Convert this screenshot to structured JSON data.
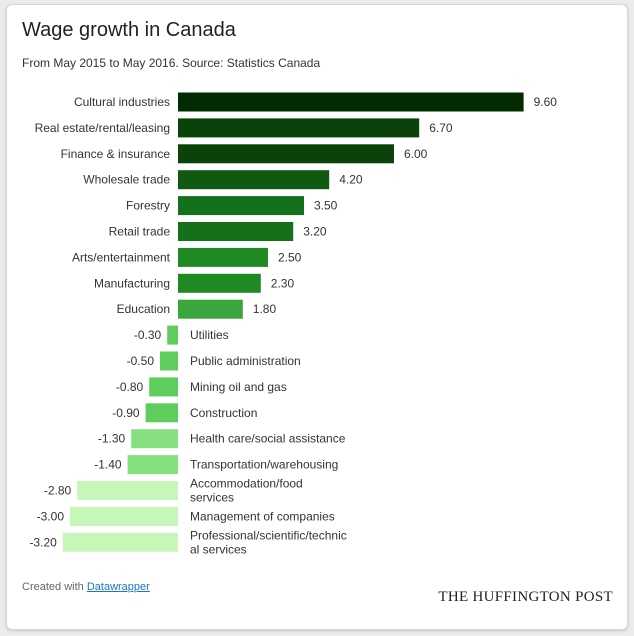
{
  "header": {
    "title": "Wage growth in Canada",
    "subtitle": "From May 2015 to May 2016. Source: Statistics Canada"
  },
  "footer": {
    "created_prefix": "Created with",
    "created_link": "Datawrapper",
    "brand": "THE HUFFINGTON POST"
  },
  "chart_data": {
    "type": "bar",
    "orientation": "horizontal",
    "title": "Wage growth in Canada",
    "subtitle": "From May 2015 to May 2016. Source: Statistics Canada",
    "categories": [
      "Cultural industries",
      "Real estate/rental/leasing",
      "Finance & insurance",
      "Wholesale trade",
      "Forestry",
      "Retail trade",
      "Arts/entertainment",
      "Manufacturing",
      "Education",
      "Utilities",
      "Public administration",
      "Mining oil and gas",
      "Construction",
      "Health care/social assistance",
      "Transportation/warehousing",
      "Accommodation/food services",
      "Management of companies",
      "Professional/scientific/technical services"
    ],
    "values": [
      9.6,
      6.7,
      6.0,
      4.2,
      3.5,
      3.2,
      2.5,
      2.3,
      1.8,
      -0.3,
      -0.5,
      -0.8,
      -0.9,
      -1.3,
      -1.4,
      -2.8,
      -3.0,
      -3.2
    ],
    "value_labels": [
      "9.60",
      "6.70",
      "6.00",
      "4.20",
      "3.50",
      "3.20",
      "2.50",
      "2.30",
      "1.80",
      "-0.30",
      "-0.50",
      "-0.80",
      "-0.90",
      "-1.30",
      "-1.40",
      "-2.80",
      "-3.00",
      "-3.20"
    ],
    "category_label_lines": [
      [
        "Cultural industries"
      ],
      [
        "Real estate/rental/leasing"
      ],
      [
        "Finance & insurance"
      ],
      [
        "Wholesale trade"
      ],
      [
        "Forestry"
      ],
      [
        "Retail trade"
      ],
      [
        "Arts/entertainment"
      ],
      [
        "Manufacturing"
      ],
      [
        "Education"
      ],
      [
        "Utilities"
      ],
      [
        "Public administration"
      ],
      [
        "Mining oil and gas"
      ],
      [
        "Construction"
      ],
      [
        "Health care/social assistance"
      ],
      [
        "Transportation/warehousing"
      ],
      [
        "Accommodation/food",
        "services"
      ],
      [
        "Management of companies"
      ],
      [
        "Professional/scientific/technic",
        "al services"
      ]
    ],
    "colors": {
      "scale": [
        "#022b02",
        "#0c4f0c",
        "#17791a",
        "#2c9a30",
        "#55c155",
        "#7ddd7a",
        "#a9ef9c",
        "#c9f7bd"
      ]
    },
    "xlim": [
      -3.2,
      9.6
    ],
    "grid": false,
    "legend": "none"
  }
}
